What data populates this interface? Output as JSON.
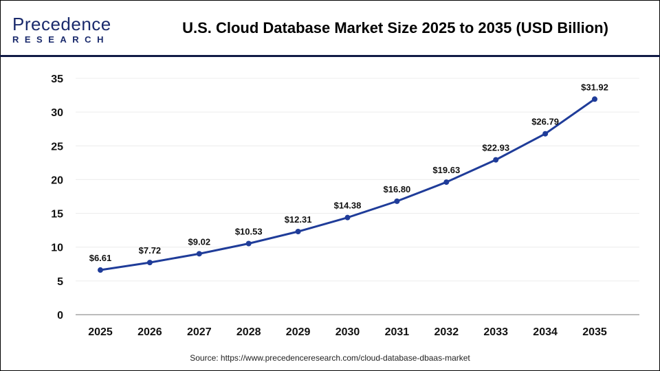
{
  "header": {
    "logo_main": "Precedence",
    "logo_sub": "RESEARCH",
    "title": "U.S. Cloud Database Market Size 2025 to 2035 (USD Billion)"
  },
  "source": "Source: https://www.precedenceresearch.com/cloud-database-dbaas-market",
  "chart_data": {
    "type": "line",
    "title": "U.S. Cloud Database Market Size 2025 to 2035 (USD Billion)",
    "categories": [
      "2025",
      "2026",
      "2027",
      "2028",
      "2029",
      "2030",
      "2031",
      "2032",
      "2033",
      "2034",
      "2035"
    ],
    "values": [
      6.61,
      7.72,
      9.02,
      10.53,
      12.31,
      14.38,
      16.8,
      19.63,
      22.93,
      26.79,
      31.92
    ],
    "labels": [
      "$6.61",
      "$7.72",
      "$9.02",
      "$10.53",
      "$12.31",
      "$14.38",
      "$16.80",
      "$19.63",
      "$22.93",
      "$26.79",
      "$31.92"
    ],
    "yticks": [
      "0",
      "5",
      "10",
      "15",
      "20",
      "25",
      "30",
      "35"
    ],
    "ylim": [
      0,
      35
    ],
    "grid": true,
    "color": "#1f3c99"
  }
}
